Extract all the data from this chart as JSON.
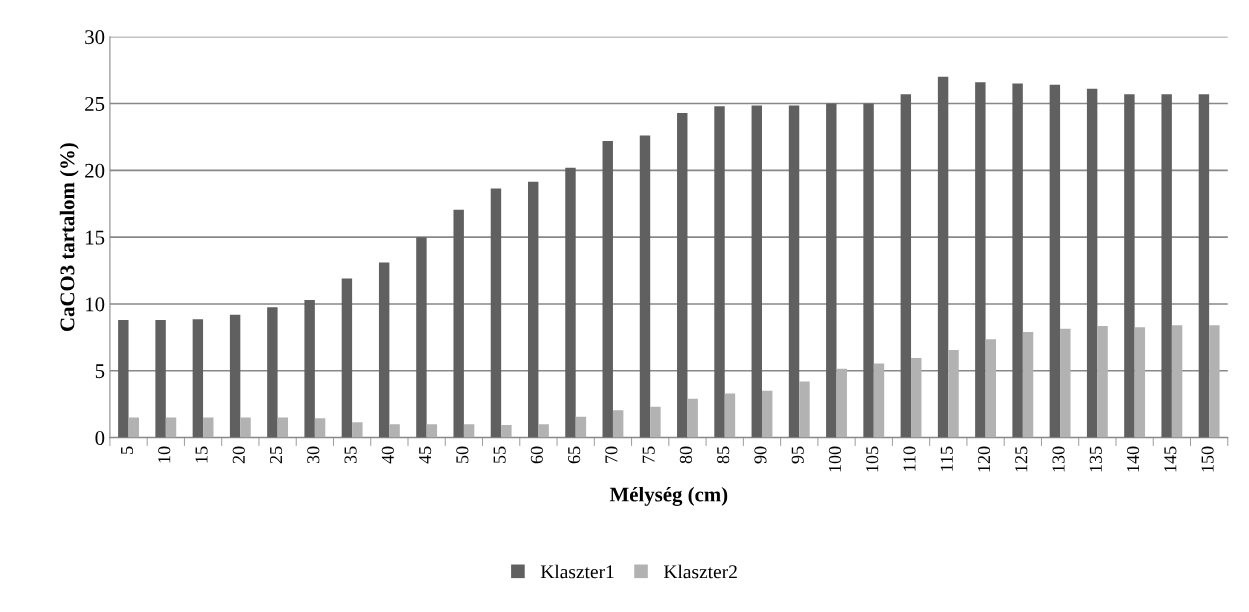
{
  "chart_data": {
    "type": "bar",
    "xlabel": "Mélység (cm)",
    "ylabel": "CaCO3 tartalom (%)",
    "categories": [
      "5",
      "10",
      "15",
      "20",
      "25",
      "30",
      "35",
      "40",
      "45",
      "50",
      "55",
      "60",
      "65",
      "70",
      "75",
      "80",
      "85",
      "90",
      "95",
      "100",
      "105",
      "110",
      "115",
      "120",
      "125",
      "130",
      "135",
      "140",
      "145",
      "150"
    ],
    "series": [
      {
        "name": "Klaszter1",
        "color": "#606060",
        "values": [
          8.8,
          8.8,
          8.85,
          9.2,
          9.75,
          10.3,
          11.9,
          13.1,
          15.0,
          17.05,
          18.65,
          19.15,
          20.2,
          22.2,
          22.6,
          24.3,
          24.8,
          24.85,
          24.85,
          25.0,
          25.0,
          25.7,
          27.0,
          26.6,
          26.5,
          26.4,
          26.1,
          25.7,
          25.7,
          25.7
        ]
      },
      {
        "name": "Klaszter2",
        "color": "#b2b2b2",
        "values": [
          1.5,
          1.5,
          1.5,
          1.5,
          1.5,
          1.45,
          1.15,
          1.0,
          1.0,
          1.0,
          0.95,
          1.0,
          1.55,
          2.05,
          2.3,
          2.9,
          3.3,
          3.5,
          4.2,
          5.15,
          5.55,
          5.95,
          6.55,
          7.35,
          7.9,
          8.15,
          8.35,
          8.25,
          8.4,
          8.4
        ]
      }
    ],
    "ylim": [
      0,
      30
    ],
    "yticks": [
      0,
      5,
      10,
      15,
      20,
      25,
      30
    ],
    "grid": "y",
    "legend": "bottom"
  }
}
